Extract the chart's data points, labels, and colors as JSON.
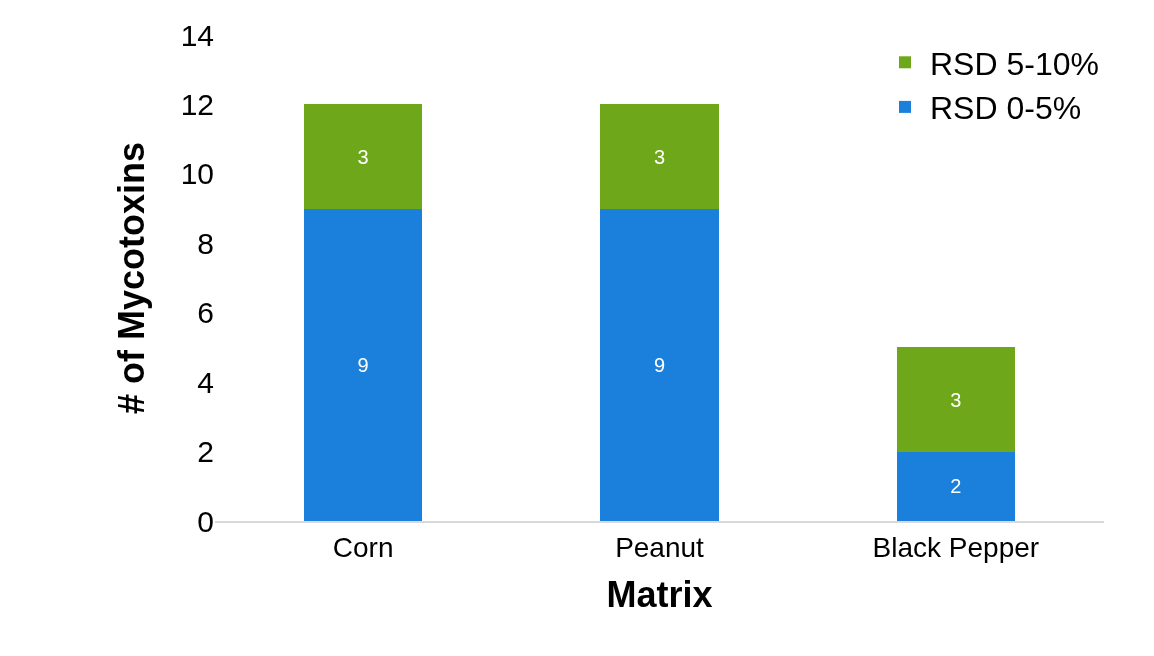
{
  "chart_data": {
    "type": "bar",
    "stacked": true,
    "xlabel": "Matrix",
    "ylabel": "# of Mycotoxins",
    "categories": [
      "Corn",
      "Peanut",
      "Black Pepper"
    ],
    "series": [
      {
        "name": "RSD 0-5%",
        "color": "#1a80dc",
        "values": [
          9,
          9,
          2
        ]
      },
      {
        "name": "RSD 5-10%",
        "color": "#6ea81a",
        "values": [
          3,
          3,
          3
        ]
      }
    ],
    "ylim": [
      0,
      14
    ],
    "yticks": [
      0,
      2,
      4,
      6,
      8,
      10,
      12,
      14
    ],
    "grid": false,
    "legend": "top right",
    "data_labels": true
  }
}
